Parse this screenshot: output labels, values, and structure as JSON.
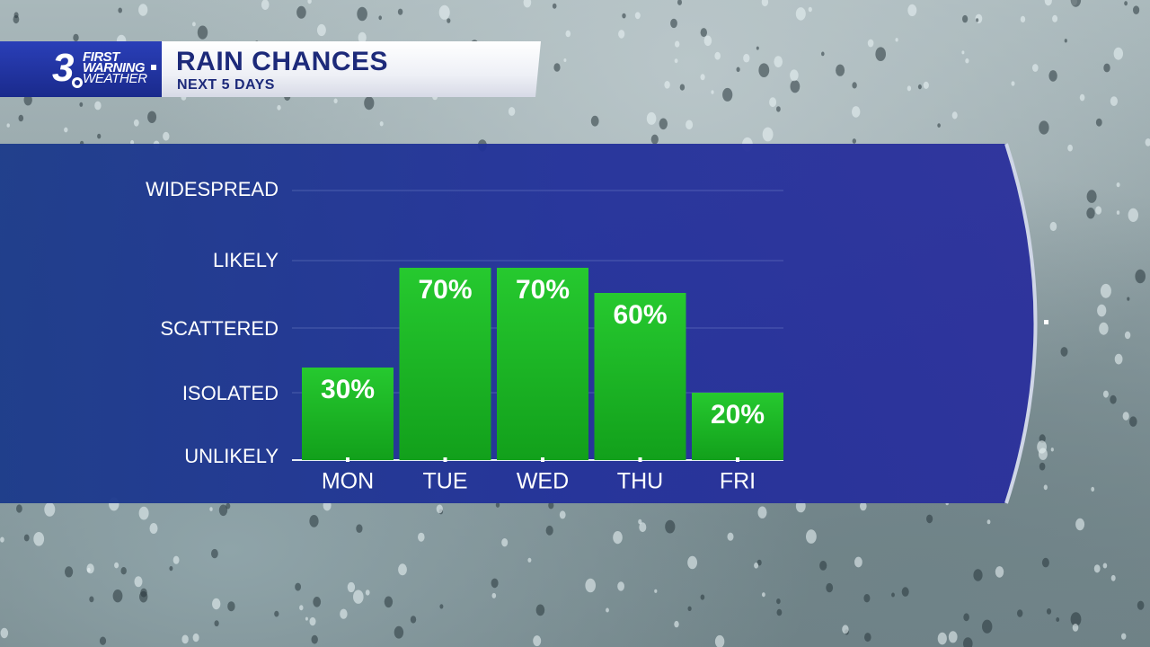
{
  "header": {
    "logo_number": "3",
    "logo_line1": "FIRST",
    "logo_line2": "WARNING",
    "logo_line3": "WEATHER",
    "title": "RAIN CHANCES",
    "subtitle": "NEXT 5 DAYS"
  },
  "colors": {
    "panel": "#1f2c8f",
    "panel_edge": "#16217a",
    "bar_top": "#22c62c",
    "bar_bottom": "#139a1b",
    "text": "#ffffff",
    "header_text": "#1d2a7a"
  },
  "chart_data": {
    "type": "bar",
    "title": "RAIN CHANCES",
    "subtitle": "NEXT 5 DAYS",
    "categories": [
      "MON",
      "TUE",
      "WED",
      "THU",
      "FRI"
    ],
    "values": [
      30,
      70,
      70,
      60,
      20
    ],
    "value_labels": [
      "30%",
      "70%",
      "70%",
      "60%",
      "20%"
    ],
    "y_levels": [
      {
        "label": "UNLIKELY",
        "value": 0
      },
      {
        "label": "ISOLATED",
        "value": 20
      },
      {
        "label": "SCATTERED",
        "value": 40
      },
      {
        "label": "LIKELY",
        "value": 60
      },
      {
        "label": "WIDESPREAD",
        "value": 80
      }
    ],
    "ylim": [
      0,
      80
    ],
    "grid": true,
    "legend": "none"
  }
}
